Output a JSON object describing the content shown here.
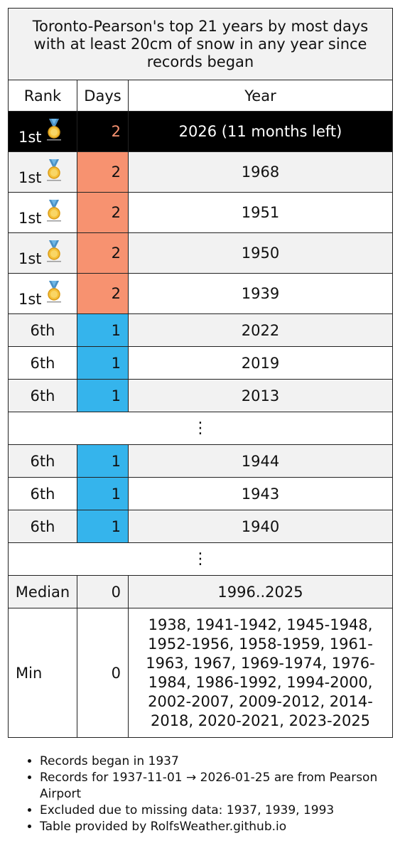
{
  "title": "Toronto-Pearson's top 21 years by most days with at least 20cm of snow in any year since records began",
  "headers": {
    "rank": "Rank",
    "days": "Days",
    "year": "Year"
  },
  "rows": [
    {
      "rank": "1st",
      "medal": true,
      "days": "2",
      "year": "2026 (11 months left)",
      "style": "cur",
      "color": "d2"
    },
    {
      "rank": "1st",
      "medal": true,
      "days": "2",
      "year": "1968",
      "style": "alt",
      "color": "d2"
    },
    {
      "rank": "1st",
      "medal": true,
      "days": "2",
      "year": "1951",
      "style": "wht",
      "color": "d2"
    },
    {
      "rank": "1st",
      "medal": true,
      "days": "2",
      "year": "1950",
      "style": "alt",
      "color": "d2"
    },
    {
      "rank": "1st",
      "medal": true,
      "days": "2",
      "year": "1939",
      "style": "wht",
      "color": "d2"
    },
    {
      "rank": "6th",
      "medal": false,
      "days": "1",
      "year": "2022",
      "style": "alt",
      "color": "d1"
    },
    {
      "rank": "6th",
      "medal": false,
      "days": "1",
      "year": "2019",
      "style": "wht",
      "color": "d1"
    },
    {
      "rank": "6th",
      "medal": false,
      "days": "1",
      "year": "2013",
      "style": "alt",
      "color": "d1"
    },
    {
      "ellipsis": "⋮"
    },
    {
      "rank": "6th",
      "medal": false,
      "days": "1",
      "year": "1944",
      "style": "alt",
      "color": "d1"
    },
    {
      "rank": "6th",
      "medal": false,
      "days": "1",
      "year": "1943",
      "style": "wht",
      "color": "d1"
    },
    {
      "rank": "6th",
      "medal": false,
      "days": "1",
      "year": "1940",
      "style": "alt",
      "color": "d1"
    },
    {
      "ellipsis": "⋮"
    }
  ],
  "median": {
    "label": "Median",
    "days": "0",
    "years": "1996..2025"
  },
  "min": {
    "label": "Min",
    "days": "0",
    "years": "1938, 1941-1942, 1945-1948, 1952-1956, 1958-1959, 1961-1963, 1967, 1969-1974, 1976-1984, 1986-1992, 1994-2000, 2002-2007, 2009-2012, 2014-2018, 2020-2021, 2023-2025"
  },
  "notes": [
    "Records began in 1937",
    "Records for 1937-11-01 → 2026-01-25 are from Pearson Airport",
    "Excluded due to missing data: 1937, 1939, 1993",
    "Table provided by RolfsWeather.github.io"
  ],
  "colors": {
    "two_days": "#f79270",
    "one_day": "#35b4ec",
    "current_year_bg": "#000000",
    "alt_row": "#f2f2f2"
  },
  "icons": {
    "medal": "gold-medal-icon"
  }
}
